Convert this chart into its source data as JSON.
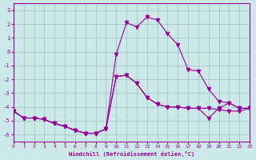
{
  "xlabel": "Windchill (Refroidissement éolien,°C)",
  "background_color": "#cce8e8",
  "grid_color": "#aacccc",
  "line_color": "#990099",
  "xlim": [
    0,
    23
  ],
  "ylim": [
    -6.5,
    3.5
  ],
  "yticks": [
    3,
    2,
    1,
    0,
    -1,
    -2,
    -3,
    -4,
    -5,
    -6
  ],
  "xticks": [
    0,
    1,
    2,
    3,
    4,
    5,
    6,
    7,
    8,
    9,
    10,
    11,
    12,
    13,
    14,
    15,
    16,
    17,
    18,
    19,
    20,
    21,
    22,
    23
  ],
  "curve1_x": [
    0,
    1,
    2,
    3,
    4,
    5,
    6,
    7,
    8,
    9,
    10,
    11,
    12,
    13,
    14,
    15,
    16,
    17,
    18,
    19,
    20,
    21,
    22,
    23
  ],
  "curve1_y": [
    -4.3,
    -4.8,
    -4.8,
    -4.9,
    -5.2,
    -5.4,
    -5.7,
    -5.9,
    -5.9,
    -5.6,
    -1.8,
    -1.7,
    -2.3,
    -3.3,
    -3.8,
    -4.0,
    -4.0,
    -4.1,
    -4.1,
    -4.1,
    -4.2,
    -4.3,
    -4.3,
    -4.1
  ],
  "curve2_x": [
    0,
    1,
    2,
    3,
    4,
    5,
    6,
    7,
    8,
    9,
    10,
    11,
    12,
    13,
    14,
    15,
    16,
    17,
    18,
    19,
    20,
    21,
    22,
    23
  ],
  "curve2_y": [
    -4.3,
    -4.8,
    -4.8,
    -4.9,
    -5.2,
    -5.4,
    -5.7,
    -5.9,
    -5.9,
    -5.6,
    -0.2,
    2.1,
    1.8,
    2.5,
    2.3,
    1.3,
    0.5,
    -1.3,
    -1.4,
    -2.7,
    -3.6,
    -3.7,
    -4.1,
    -4.1
  ],
  "curve3_x": [
    0,
    1,
    2,
    3,
    4,
    5,
    6,
    7,
    8,
    9,
    10,
    11,
    12,
    13,
    14,
    15,
    16,
    17,
    18,
    19,
    20,
    21,
    22,
    23
  ],
  "curve3_y": [
    -4.3,
    -4.8,
    -4.8,
    -4.9,
    -5.2,
    -5.4,
    -5.7,
    -5.9,
    -5.9,
    -5.6,
    -1.8,
    -1.7,
    -2.3,
    -3.3,
    -3.8,
    -4.0,
    -4.0,
    -4.1,
    -4.1,
    -4.8,
    -4.1,
    -3.7,
    -4.1,
    -4.1
  ]
}
